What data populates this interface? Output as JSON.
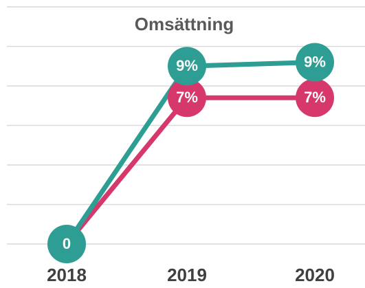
{
  "chart_data": {
    "type": "line",
    "title": "Omsättning",
    "categories": [
      "2018",
      "2019",
      "2020"
    ],
    "series": [
      {
        "color": "#d6386c",
        "values": [
          0,
          7.4,
          7.4
        ],
        "value_labels": [
          null,
          "7%",
          "7%"
        ]
      },
      {
        "color": "#2e9e94",
        "values": [
          0,
          9,
          9.2
        ],
        "value_labels": [
          "0",
          "9%",
          "9%"
        ]
      }
    ],
    "ylim": [
      0,
      12
    ],
    "yticks": [
      0,
      2,
      4,
      6,
      8,
      10,
      12
    ],
    "grid": true
  }
}
